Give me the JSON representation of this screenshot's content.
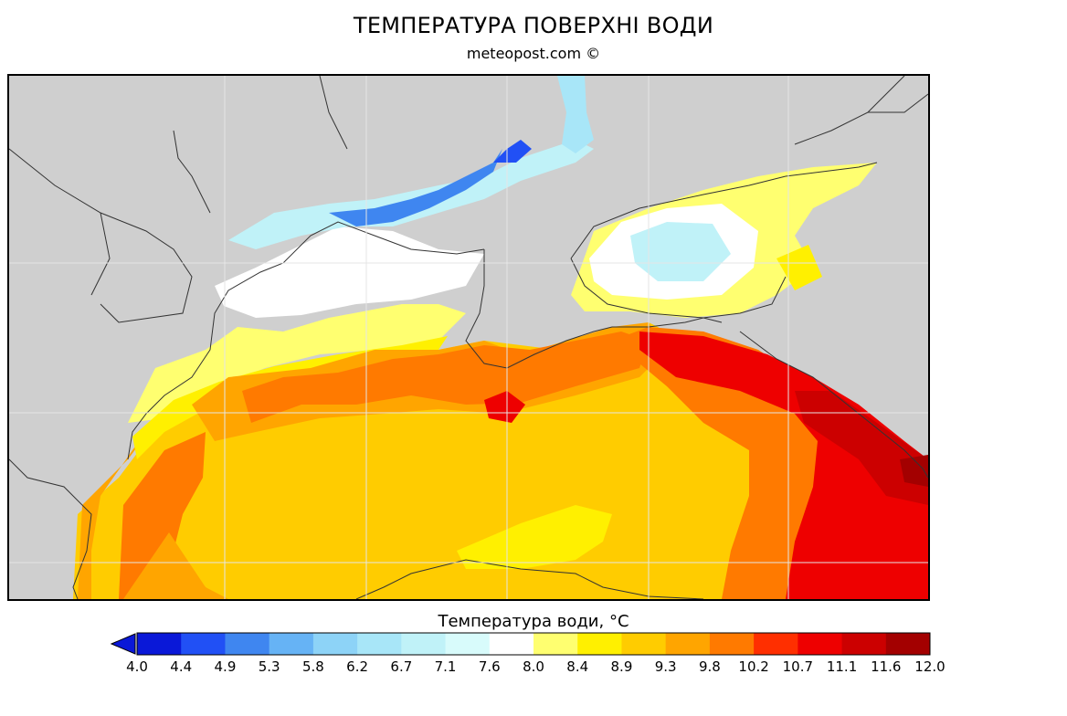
{
  "title": "ТЕМПЕРАТУРА ПОВЕРХНІ ВОДИ",
  "source": "meteopost.com ©",
  "colorbar": {
    "title": "Температура води, °C",
    "ticks": [
      "4.0",
      "4.4",
      "4.9",
      "5.3",
      "5.8",
      "6.2",
      "6.7",
      "7.1",
      "7.6",
      "8.0",
      "8.4",
      "8.9",
      "9.3",
      "9.8",
      "10.2",
      "10.7",
      "11.1",
      "11.6",
      "12.0"
    ],
    "colors": [
      "#0a18d8",
      "#2150f5",
      "#3f86f0",
      "#66b3f5",
      "#8dd3f7",
      "#a8e6f8",
      "#c0f2f8",
      "#d8fbfb",
      "#ffffff",
      "#ffff70",
      "#fff000",
      "#ffcc00",
      "#ffa500",
      "#ff7a00",
      "#ff2f00",
      "#ee0000",
      "#cc0000",
      "#a30000"
    ],
    "under_color": "#0a18d8"
  },
  "colors": {
    "land": "#cfcfcf",
    "coast": "#333333",
    "grid": "#e6e6e6"
  }
}
